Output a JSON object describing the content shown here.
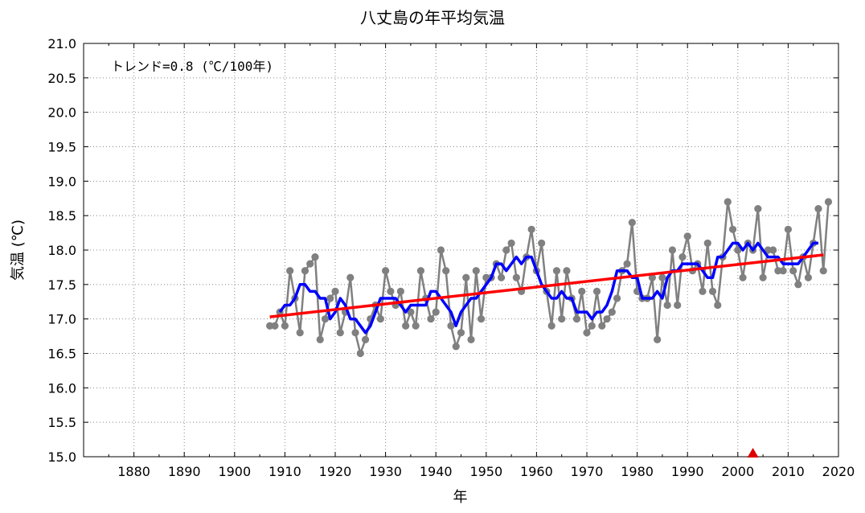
{
  "chart_data": {
    "type": "line",
    "title": "八丈島の年平均気温",
    "xlabel": "年",
    "ylabel": "気温 (℃)",
    "annotation": "トレンド=0.8 (℃/100年)",
    "xlim": [
      1870,
      2020
    ],
    "ylim": [
      15.0,
      21.0
    ],
    "xticks": [
      "1880",
      "1890",
      "1900",
      "1910",
      "1920",
      "1930",
      "1940",
      "1950",
      "1960",
      "1970",
      "1980",
      "1990",
      "2000",
      "2010",
      "2020"
    ],
    "yticks": [
      "15.0",
      "15.5",
      "16.0",
      "16.5",
      "17.0",
      "17.5",
      "18.0",
      "18.5",
      "19.0",
      "19.5",
      "20.0",
      "20.5",
      "21.0"
    ],
    "grid": true,
    "colors": {
      "annual": "#808080",
      "moving_average": "#0000ff",
      "trend": "#ff0000",
      "marker": "#dd0000"
    },
    "series": [
      {
        "x": [
          1907,
          1908,
          1909,
          1910,
          1911,
          1912,
          1913,
          1914,
          1915,
          1916,
          1917,
          1918,
          1919,
          1920,
          1921,
          1922,
          1923,
          1924,
          1925,
          1926,
          1927,
          1928,
          1929,
          1930,
          1931,
          1932,
          1933,
          1934,
          1935,
          1936,
          1937,
          1938,
          1939,
          1940,
          1941,
          1942,
          1943,
          1944,
          1945,
          1946,
          1947,
          1948,
          1949,
          1950,
          1951,
          1952,
          1953,
          1954,
          1955,
          1956,
          1957,
          1958,
          1959,
          1960,
          1961,
          1962,
          1963,
          1964,
          1965,
          1966,
          1967,
          1968,
          1969,
          1970,
          1971,
          1972,
          1973,
          1974,
          1975,
          1976,
          1977,
          1978,
          1979,
          1980,
          1981,
          1982,
          1983,
          1984,
          1985,
          1986,
          1987,
          1988,
          1989,
          1990,
          1991,
          1992,
          1993,
          1994,
          1995,
          1996,
          1997,
          1998,
          1999,
          2000,
          2001,
          2002,
          2003,
          2004,
          2005,
          2006,
          2007,
          2008,
          2009,
          2010,
          2011,
          2012,
          2013,
          2014,
          2015,
          2016,
          2017,
          2018
        ],
        "values": [
          16.9,
          16.9,
          17.1,
          16.9,
          17.7,
          17.3,
          16.8,
          17.7,
          17.8,
          17.9,
          16.7,
          17.0,
          17.3,
          17.4,
          16.8,
          17.1,
          17.6,
          16.8,
          16.5,
          16.7,
          17.0,
          17.2,
          17.0,
          17.7,
          17.4,
          17.2,
          17.4,
          16.9,
          17.1,
          16.9,
          17.7,
          17.3,
          17.0,
          17.1,
          18.0,
          17.7,
          16.9,
          16.6,
          16.8,
          17.6,
          16.7,
          17.7,
          17.0,
          17.6,
          17.6,
          17.8,
          17.6,
          18.0,
          18.1,
          17.6,
          17.4,
          17.9,
          18.3,
          17.7,
          18.1,
          17.4,
          16.9,
          17.7,
          17.0,
          17.7,
          17.3,
          17.0,
          17.4,
          16.8,
          16.9,
          17.4,
          16.9,
          17.0,
          17.1,
          17.3,
          17.7,
          17.8,
          18.4,
          17.4,
          17.3,
          17.3,
          17.6,
          16.7,
          17.6,
          17.2,
          18.0,
          17.2,
          17.9,
          18.2,
          17.7,
          17.8,
          17.4,
          18.1,
          17.4,
          17.2,
          17.9,
          18.7,
          18.3,
          18.0,
          17.6,
          18.1,
          18.0,
          18.6,
          17.6,
          18.0,
          18.0,
          17.7,
          17.7,
          18.3,
          17.7,
          17.5,
          17.9,
          17.6,
          18.1,
          18.6,
          17.7,
          18.7
        ]
      },
      {
        "x": [
          1909,
          1910,
          1911,
          1912,
          1913,
          1914,
          1915,
          1916,
          1917,
          1918,
          1919,
          1920,
          1921,
          1922,
          1923,
          1924,
          1925,
          1926,
          1927,
          1928,
          1929,
          1930,
          1931,
          1932,
          1933,
          1934,
          1935,
          1936,
          1937,
          1938,
          1939,
          1940,
          1941,
          1942,
          1943,
          1944,
          1945,
          1946,
          1947,
          1948,
          1949,
          1950,
          1951,
          1952,
          1953,
          1954,
          1955,
          1956,
          1957,
          1958,
          1959,
          1960,
          1961,
          1962,
          1963,
          1964,
          1965,
          1966,
          1967,
          1968,
          1969,
          1970,
          1971,
          1972,
          1973,
          1974,
          1975,
          1976,
          1977,
          1978,
          1979,
          1980,
          1981,
          1982,
          1983,
          1984,
          1985,
          1986,
          1987,
          1988,
          1989,
          1990,
          1991,
          1992,
          1993,
          1994,
          1995,
          1996,
          1997,
          1998,
          1999,
          2000,
          2001,
          2002,
          2003,
          2004,
          2005,
          2006,
          2007,
          2008,
          2009,
          2010,
          2011,
          2012,
          2013,
          2014,
          2015,
          2016
        ],
        "values": [
          17.1,
          17.2,
          17.2,
          17.3,
          17.5,
          17.5,
          17.4,
          17.4,
          17.3,
          17.3,
          17.0,
          17.1,
          17.3,
          17.2,
          17.0,
          17.0,
          16.9,
          16.8,
          16.9,
          17.1,
          17.3,
          17.3,
          17.3,
          17.3,
          17.2,
          17.1,
          17.2,
          17.2,
          17.2,
          17.2,
          17.4,
          17.4,
          17.3,
          17.2,
          17.1,
          16.9,
          17.1,
          17.2,
          17.3,
          17.3,
          17.4,
          17.5,
          17.6,
          17.8,
          17.8,
          17.7,
          17.8,
          17.9,
          17.8,
          17.9,
          17.9,
          17.7,
          17.5,
          17.4,
          17.3,
          17.3,
          17.4,
          17.3,
          17.3,
          17.1,
          17.1,
          17.1,
          17.0,
          17.1,
          17.1,
          17.2,
          17.4,
          17.7,
          17.7,
          17.7,
          17.6,
          17.6,
          17.3,
          17.3,
          17.3,
          17.4,
          17.3,
          17.6,
          17.7,
          17.7,
          17.8,
          17.8,
          17.8,
          17.8,
          17.7,
          17.6,
          17.6,
          17.9,
          17.9,
          18.0,
          18.1,
          18.1,
          18.0,
          18.1,
          18.0,
          18.1,
          18.0,
          17.9,
          17.9,
          17.9,
          17.8,
          17.8,
          17.8,
          17.8,
          17.9,
          18.0,
          18.1,
          18.1
        ]
      },
      {
        "x": [
          1907,
          2017
        ],
        "values": [
          17.03,
          17.93
        ]
      }
    ],
    "markers": [
      {
        "x": 2003,
        "y": 15.0,
        "shape": "triangle-up"
      }
    ]
  }
}
